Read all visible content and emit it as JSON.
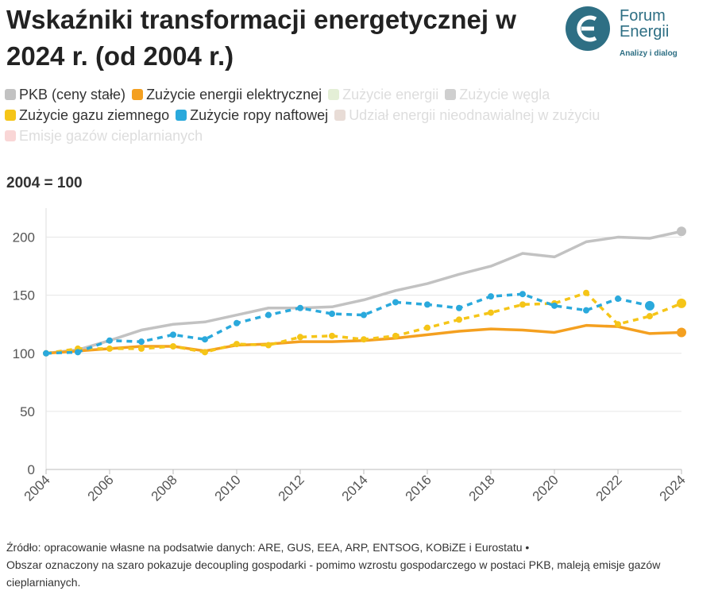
{
  "chart_data": {
    "type": "line",
    "title": "Wskaźniki transformacji energetycznej w 2024 r. (od 2004 r.)",
    "subtitle": "2004 = 100",
    "logo": {
      "name": "Forum Energii",
      "line1": "Forum",
      "line2": "Energii",
      "tagline": "Analizy i dialog"
    },
    "x": [
      2004,
      2005,
      2006,
      2007,
      2008,
      2009,
      2010,
      2011,
      2012,
      2013,
      2014,
      2015,
      2016,
      2017,
      2018,
      2019,
      2020,
      2021,
      2022,
      2023,
      2024
    ],
    "xlim": [
      2004,
      2024
    ],
    "xticks": [
      2004,
      2006,
      2008,
      2010,
      2012,
      2014,
      2016,
      2018,
      2020,
      2022,
      2024
    ],
    "ylim": [
      0,
      225
    ],
    "yticks": [
      0,
      50,
      100,
      150,
      200
    ],
    "grid": true,
    "series": [
      {
        "name": "PKB (ceny stałe)",
        "color": "#c2c2c2",
        "dashed": false,
        "values": [
          100,
          103,
          111,
          120,
          125,
          127,
          133,
          139,
          139,
          140,
          146,
          154,
          160,
          168,
          175,
          186,
          183,
          196,
          200,
          199,
          205
        ]
      },
      {
        "name": "Zużycie energii elektrycznej",
        "color": "#f4a020",
        "dashed": false,
        "values": [
          100,
          102,
          104,
          106,
          106,
          102,
          107,
          108,
          110,
          110,
          111,
          113,
          116,
          119,
          121,
          120,
          118,
          124,
          123,
          117,
          118
        ]
      },
      {
        "name": "Zużycie energii",
        "color": "#e4efd6",
        "hidden": true
      },
      {
        "name": "Zużycie węgla",
        "color": "#cfcfcf",
        "hidden": true
      },
      {
        "name": "Zużycie gazu ziemnego",
        "color": "#f5c518",
        "dashed": true,
        "values": [
          100,
          104,
          104,
          104,
          106,
          101,
          108,
          107,
          114,
          115,
          112,
          115,
          122,
          129,
          135,
          142,
          143,
          152,
          125,
          132,
          143
        ]
      },
      {
        "name": "Zużycie ropy naftowej",
        "color": "#2aa9dc",
        "dashed": true,
        "values": [
          100,
          101,
          111,
          110,
          116,
          112,
          126,
          133,
          139,
          134,
          133,
          144,
          142,
          139,
          149,
          151,
          141,
          137,
          147,
          141,
          null
        ]
      },
      {
        "name": "Udział energii nieodnawialnej w zużyciu",
        "color": "#e8dcd6",
        "hidden": true
      },
      {
        "name": "Emisje gazów cieplarnianych",
        "color": "#f9d6d6",
        "hidden": true
      }
    ],
    "source": "Źródło: opracowanie własne na podsatwie danych: ARE, GUS, EEA, ARP, ENTSOG, KOBiZE i Eurostatu •",
    "note": "Obszar oznaczony na szaro pokazuje decoupling gospodarki - pomimo wzrostu gospodarczego w postaci PKB, maleją emisje gazów cieplarnianych."
  }
}
